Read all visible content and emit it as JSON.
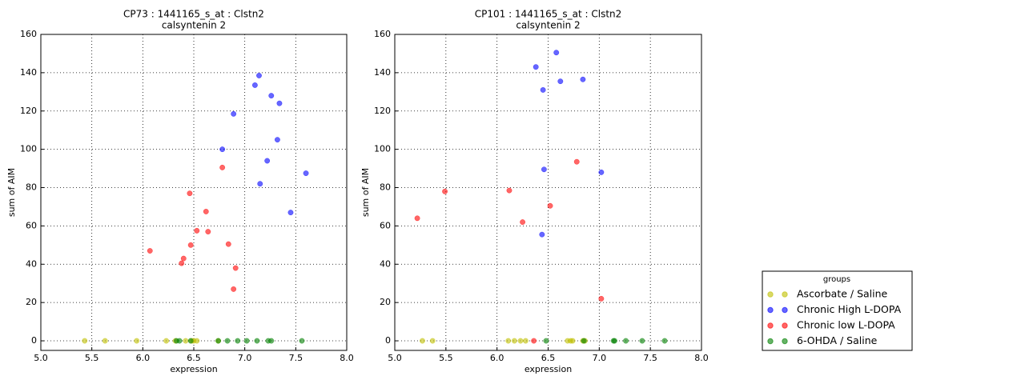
{
  "chart_data": [
    {
      "type": "scatter",
      "title": "CP73 : 1441165_s_at : Clstn2",
      "subtitle": "calsyntenin 2",
      "x_label": "expression",
      "y_label": "sum of AIM",
      "xlim": [
        5,
        8
      ],
      "ylim": [
        -5,
        160
      ],
      "xticks": [
        {
          "value": 5,
          "label": "5.0"
        },
        {
          "value": 5.5,
          "label": "5.5"
        },
        {
          "value": 6,
          "label": "6.0"
        },
        {
          "value": 6.5,
          "label": "6.5"
        },
        {
          "value": 7,
          "label": "7.0"
        },
        {
          "value": 7.5,
          "label": "7.5"
        },
        {
          "value": 8,
          "label": "8.0"
        }
      ],
      "yticks": [
        0,
        20,
        40,
        60,
        80,
        100,
        120,
        140,
        160
      ],
      "grid": true,
      "legend_title": "groups",
      "series": [
        {
          "name": "Ascorbate / Saline",
          "color": "#bfbf00",
          "x": [
            5.43,
            5.63,
            5.94,
            6.23,
            6.32,
            6.42,
            6.48,
            6.5,
            6.53,
            6.74
          ],
          "y": [
            0,
            0,
            0,
            0,
            0,
            0,
            0,
            0,
            0,
            0
          ]
        },
        {
          "name": "Chronic High L-DOPA",
          "color": "#0000ff",
          "x": [
            7.14,
            7.1,
            7.26,
            7.34,
            6.89,
            7.32,
            6.78,
            7.22,
            7.6,
            7.15,
            7.45
          ],
          "y": [
            138.5,
            133.5,
            128,
            124,
            118.5,
            105,
            100,
            94,
            87.5,
            82,
            67
          ]
        },
        {
          "name": "Chronic low L-DOPA",
          "color": "#ff0000",
          "x": [
            6.78,
            6.46,
            6.62,
            6.53,
            6.64,
            6.84,
            6.47,
            6.07,
            6.4,
            6.38,
            6.91,
            6.89
          ],
          "y": [
            90.5,
            77,
            67.5,
            57.5,
            57,
            50.5,
            50,
            47,
            43,
            40.5,
            38,
            27
          ]
        },
        {
          "name": "6-OHDA / Saline",
          "color": "#008000",
          "x": [
            6.33,
            6.36,
            6.47,
            6.74,
            6.83,
            6.93,
            7.02,
            7.12,
            7.23,
            7.26,
            7.56
          ],
          "y": [
            0,
            0,
            0,
            0,
            0,
            0,
            0,
            0,
            0,
            0,
            0
          ]
        }
      ]
    },
    {
      "type": "scatter",
      "title": "CP101 : 1441165_s_at : Clstn2",
      "subtitle": "calsyntenin 2",
      "x_label": "expression",
      "y_label": "sum of AIM",
      "xlim": [
        5,
        8
      ],
      "ylim": [
        -5,
        160
      ],
      "xticks": [
        {
          "value": 5,
          "label": "5.0"
        },
        {
          "value": 5.5,
          "label": "5.5"
        },
        {
          "value": 6,
          "label": "6.0"
        },
        {
          "value": 6.5,
          "label": "6.5"
        },
        {
          "value": 7,
          "label": "7.0"
        },
        {
          "value": 7.5,
          "label": "7.5"
        },
        {
          "value": 8,
          "label": "8.0"
        }
      ],
      "yticks": [
        0,
        20,
        40,
        60,
        80,
        100,
        120,
        140,
        160
      ],
      "grid": true,
      "series": [
        {
          "name": "Ascorbate / Saline",
          "color": "#bfbf00",
          "x": [
            5.27,
            5.37,
            6.11,
            6.17,
            6.23,
            6.28,
            6.69,
            6.72,
            6.74,
            6.84,
            6.86
          ],
          "y": [
            0,
            0,
            0,
            0,
            0,
            0,
            0,
            0,
            0,
            0,
            0
          ]
        },
        {
          "name": "Chronic High L-DOPA",
          "color": "#0000ff",
          "x": [
            6.38,
            6.58,
            6.62,
            6.84,
            6.45,
            6.46,
            7.02,
            6.44
          ],
          "y": [
            143,
            150.5,
            135.5,
            136.5,
            131,
            89.5,
            88,
            55.5
          ]
        },
        {
          "name": "Chronic low L-DOPA",
          "color": "#ff0000",
          "x": [
            5.22,
            5.49,
            6.12,
            6.78,
            6.52,
            6.25,
            6.36,
            7.02
          ],
          "y": [
            64,
            78,
            78.5,
            93.5,
            70.5,
            62,
            0,
            22
          ]
        },
        {
          "name": "6-OHDA / Saline",
          "color": "#008000",
          "x": [
            6.48,
            6.85,
            7.14,
            7.15,
            7.26,
            7.42,
            7.64
          ],
          "y": [
            0,
            0,
            0,
            0,
            0,
            0,
            0
          ]
        }
      ]
    }
  ]
}
